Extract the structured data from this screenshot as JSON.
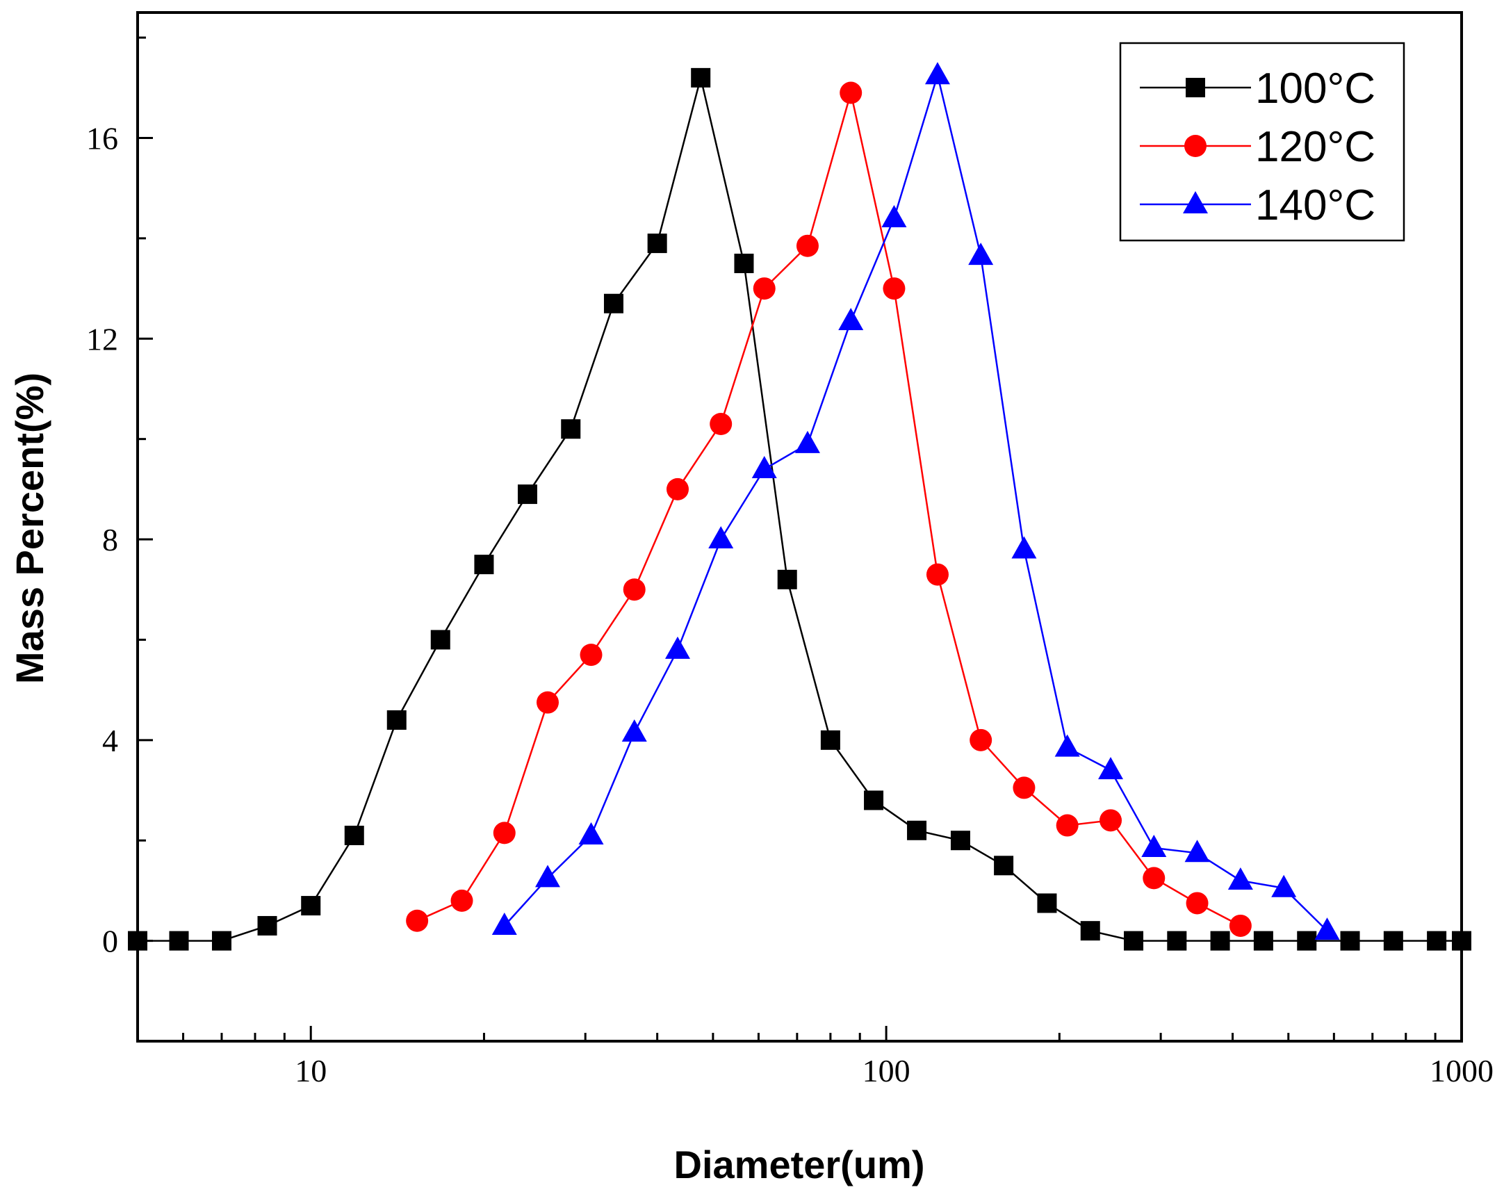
{
  "chart_data": {
    "type": "line",
    "title": "",
    "xlabel": "Diameter(um)",
    "ylabel": "Mass Percent(%)",
    "xscale": "log",
    "xlim": [
      5,
      1000
    ],
    "ylim": [
      -2,
      18.5
    ],
    "xticks": [
      10,
      100,
      1000
    ],
    "xtick_labels": [
      "10",
      "100",
      "1000"
    ],
    "yticks": [
      0,
      4,
      8,
      12,
      16
    ],
    "ytick_labels": [
      "0",
      "4",
      "8",
      "12",
      "16"
    ],
    "grid": false,
    "legend_position": "top-right",
    "series": [
      {
        "name": "100°C",
        "color": "#000000",
        "marker": "square",
        "x": [
          5,
          5.9,
          7,
          8.4,
          10,
          11.9,
          14.1,
          16.8,
          20,
          23.8,
          28.3,
          33.6,
          40,
          47.6,
          56.6,
          67.3,
          80,
          95.1,
          113,
          134.6,
          160,
          190.3,
          226.3,
          269.1,
          320,
          380.5,
          452.5,
          538.2,
          640,
          761.1,
          905,
          1000
        ],
        "y": [
          0,
          0,
          0,
          0.3,
          0.7,
          2.1,
          4.4,
          6.0,
          7.5,
          8.9,
          10.2,
          12.7,
          13.9,
          17.2,
          13.5,
          7.2,
          4.0,
          2.8,
          2.2,
          2.0,
          1.5,
          0.75,
          0.2,
          0,
          0,
          0,
          0,
          0,
          0,
          0,
          0,
          0
        ]
      },
      {
        "name": "120°C",
        "color": "#ff0000",
        "marker": "circle",
        "x": [
          15.3,
          18.3,
          21.7,
          25.8,
          30.7,
          36.5,
          43.4,
          51.6,
          61.4,
          73,
          86.8,
          103.2,
          122.8,
          146,
          173.6,
          206.4,
          245.5,
          291.9,
          347.1,
          412.8
        ],
        "y": [
          0.4,
          0.8,
          2.15,
          4.75,
          5.7,
          7.0,
          9.0,
          10.3,
          13.0,
          13.85,
          16.9,
          13.0,
          7.3,
          4.0,
          3.05,
          2.3,
          2.4,
          1.25,
          0.75,
          0.3
        ]
      },
      {
        "name": "140°C",
        "color": "#0000ff",
        "marker": "triangle",
        "x": [
          21.7,
          25.8,
          30.7,
          36.5,
          43.4,
          51.6,
          61.4,
          73,
          86.8,
          103.2,
          122.8,
          146,
          173.6,
          206.4,
          245.5,
          291.9,
          347.1,
          412.8,
          490.9,
          583.8
        ],
        "y": [
          0.3,
          1.25,
          2.1,
          4.15,
          5.8,
          8.0,
          9.4,
          9.9,
          12.35,
          14.4,
          17.25,
          13.65,
          7.8,
          3.85,
          3.4,
          1.85,
          1.75,
          1.2,
          1.05,
          0.2
        ]
      }
    ]
  }
}
